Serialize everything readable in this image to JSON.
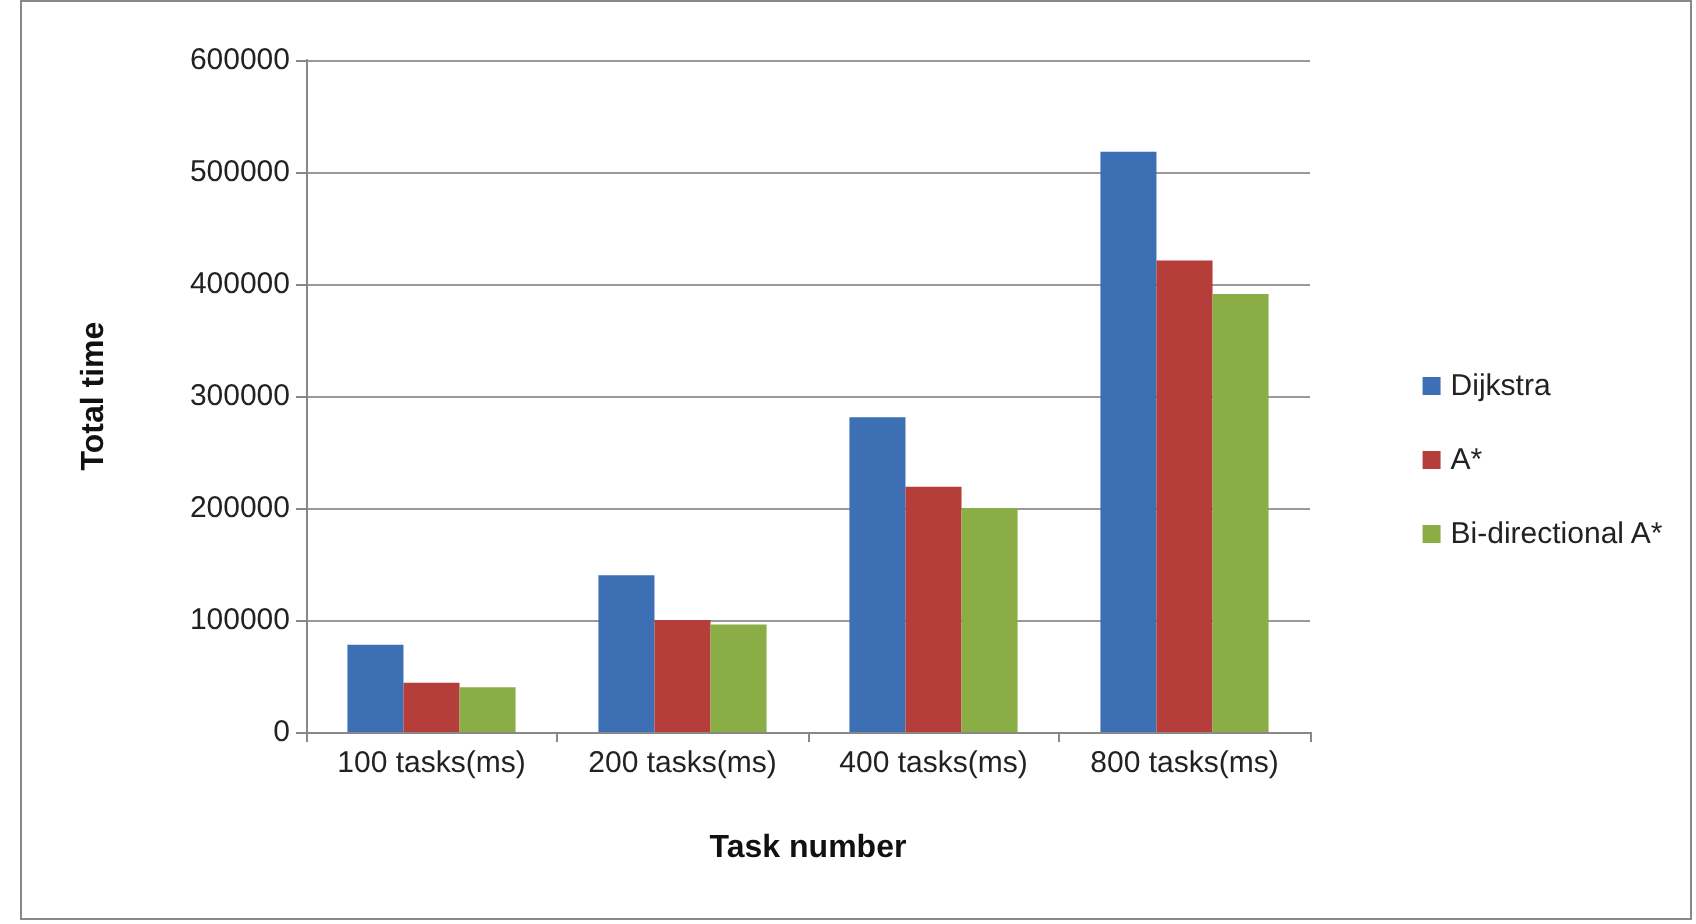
{
  "chart_data": {
    "type": "bar",
    "xlabel": "Task number",
    "ylabel": "Total time",
    "categories": [
      "100 tasks(ms)",
      "200 tasks(ms)",
      "400 tasks(ms)",
      "800 tasks(ms)"
    ],
    "series": [
      {
        "name": "Dijkstra",
        "color": "#3d6fb4",
        "values": [
          78000,
          140000,
          281000,
          518000
        ]
      },
      {
        "name": "A*",
        "color": "#b53d3a",
        "values": [
          44000,
          100000,
          219000,
          421000
        ]
      },
      {
        "name": "Bi-directional A*",
        "color": "#8aae45",
        "values": [
          40000,
          96000,
          200000,
          391000
        ]
      }
    ],
    "ylim": [
      0,
      600000
    ],
    "yticks": [
      0,
      100000,
      200000,
      300000,
      400000,
      500000,
      600000
    ],
    "grid": "y",
    "legend": "right"
  }
}
